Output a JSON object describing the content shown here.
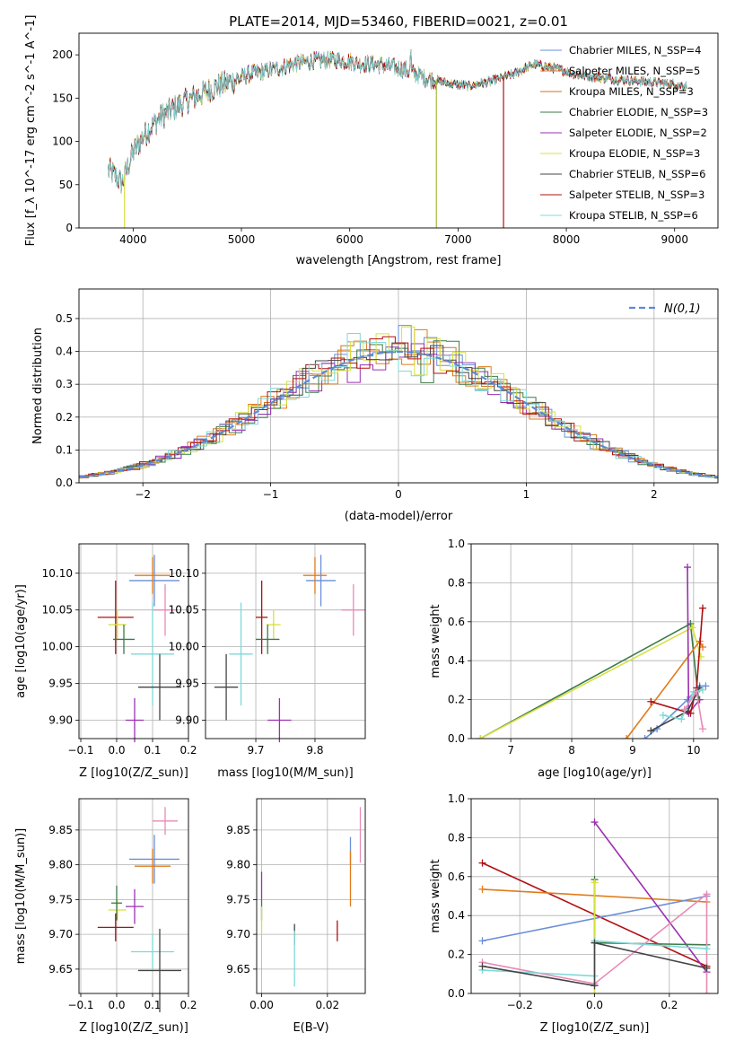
{
  "figure": {
    "title": "PLATE=2014, MJD=53460, FIBERID=0021, z=0.01"
  },
  "legend_spectrum": [
    {
      "label": "Chabrier MILES, N_SSP=4",
      "color": "#6a8fd8"
    },
    {
      "label": "Salpeter MILES, N_SSP=5",
      "color": "#e07b1a"
    },
    {
      "label": "Kroupa MILES, N_SSP=3",
      "color": "#cc7a22"
    },
    {
      "label": "Chabrier ELODIE, N_SSP=3",
      "color": "#3c7a4a"
    },
    {
      "label": "Salpeter ELODIE, N_SSP=2",
      "color": "#9b30b0"
    },
    {
      "label": "Kroupa ELODIE, N_SSP=3",
      "color": "#d8e040"
    },
    {
      "label": "Chabrier STELIB, N_SSP=6",
      "color": "#444444"
    },
    {
      "label": "Salpeter STELIB, N_SSP=3",
      "color": "#b01010"
    },
    {
      "label": "Kroupa STELIB, N_SSP=6",
      "color": "#7fd8d8"
    }
  ],
  "legend_hist": {
    "label": "N(0,1)",
    "color": "#5b8ad6"
  },
  "chart_data": [
    {
      "id": "spectrum",
      "type": "line",
      "xlabel": "wavelength [Angstrom, rest frame]",
      "ylabel": "Flux [f_λ 10^-17 erg cm^-2 s^-1 A^-1]",
      "xlim": [
        3500,
        9400
      ],
      "ylim": [
        0,
        225
      ],
      "xticks": [
        "4000",
        "5000",
        "6000",
        "7000",
        "8000",
        "9000"
      ],
      "yticks": [
        "0",
        "50",
        "100",
        "150",
        "200"
      ],
      "continuum": [
        [
          3770,
          70
        ],
        [
          3900,
          55
        ],
        [
          4000,
          90
        ],
        [
          4100,
          110
        ],
        [
          4200,
          125
        ],
        [
          4300,
          135
        ],
        [
          4500,
          150
        ],
        [
          4700,
          162
        ],
        [
          4900,
          172
        ],
        [
          5100,
          180
        ],
        [
          5300,
          185
        ],
        [
          5500,
          192
        ],
        [
          5700,
          195
        ],
        [
          5900,
          196
        ],
        [
          6100,
          192
        ],
        [
          6300,
          190
        ],
        [
          6500,
          185
        ],
        [
          6700,
          175
        ],
        [
          6900,
          168
        ],
        [
          7100,
          165
        ],
        [
          7300,
          170
        ],
        [
          7500,
          178
        ],
        [
          7700,
          190
        ],
        [
          7900,
          185
        ],
        [
          8100,
          178
        ],
        [
          8300,
          175
        ],
        [
          8500,
          172
        ],
        [
          8700,
          170
        ],
        [
          8900,
          168
        ],
        [
          9100,
          165
        ]
      ],
      "drops": [
        {
          "x": 3920,
          "color": "#d8e040"
        },
        {
          "x": 6800,
          "color": "#a8b840"
        },
        {
          "x": 7420,
          "color": "#b01010"
        }
      ]
    },
    {
      "id": "residual_hist",
      "type": "line",
      "xlabel": "(data-model)/error",
      "ylabel": "Normed distribution",
      "xlim": [
        -2.5,
        2.5
      ],
      "ylim": [
        0,
        0.59
      ],
      "xticks": [
        "−2",
        "−1",
        "0",
        "1",
        "2"
      ],
      "yticks": [
        "0.0",
        "0.1",
        "0.2",
        "0.3",
        "0.4",
        "0.5"
      ],
      "gaussian": {
        "mean": 0,
        "sigma": 1
      }
    },
    {
      "id": "age_vs_Z",
      "type": "scatter",
      "xlabel": "Z [log10(Z/Z_sun)]",
      "ylabel": "age [log10(age/yr)]",
      "xlim": [
        -0.105,
        0.2
      ],
      "ylim": [
        9.875,
        10.14
      ],
      "xticks": [
        "−0.1",
        "0.0",
        "0.1",
        "0.2"
      ],
      "yticks": [
        "9.90",
        "9.95",
        "10.00",
        "10.05",
        "10.10"
      ],
      "points": [
        {
          "x": 0.105,
          "y": 10.09,
          "xe": 0.07,
          "ye": 0.035,
          "color": "#6a8fd8"
        },
        {
          "x": 0.1,
          "y": 10.097,
          "xe": 0.05,
          "ye": 0.025,
          "color": "#e07b1a"
        },
        {
          "x": 0.135,
          "y": 10.05,
          "xe": 0.035,
          "ye": 0.035,
          "color": "#e88ab8"
        },
        {
          "x": -0.003,
          "y": 10.04,
          "xe": 0.05,
          "ye": 0.05,
          "color": "#b01010"
        },
        {
          "x": 0.002,
          "y": 10.03,
          "xe": 0.025,
          "ye": 0.02,
          "color": "#d8e040"
        },
        {
          "x": 0.02,
          "y": 10.01,
          "xe": 0.03,
          "ye": 0.02,
          "color": "#3c7a4a"
        },
        {
          "x": 0.1,
          "y": 9.99,
          "xe": 0.06,
          "ye": 0.07,
          "color": "#7fd8d8"
        },
        {
          "x": 0.12,
          "y": 9.945,
          "xe": 0.06,
          "ye": 0.045,
          "color": "#444444"
        },
        {
          "x": 0.05,
          "y": 9.9,
          "xe": 0.025,
          "ye": 0.03,
          "color": "#9b30b0"
        }
      ]
    },
    {
      "id": "age_vs_mass",
      "type": "scatter",
      "xlabel": "mass [log10(M/M_sun)]",
      "ylabel": "",
      "xlim": [
        9.615,
        9.885
      ],
      "ylim": [
        9.875,
        10.14
      ],
      "xticks": [
        "9.7",
        "9.8"
      ],
      "yticks": [
        "9.90",
        "9.95",
        "10.00",
        "10.05",
        "10.10"
      ],
      "points": [
        {
          "x": 9.81,
          "y": 10.09,
          "xe": 0.025,
          "ye": 0.035,
          "color": "#6a8fd8"
        },
        {
          "x": 9.8,
          "y": 10.097,
          "xe": 0.02,
          "ye": 0.025,
          "color": "#e07b1a"
        },
        {
          "x": 9.865,
          "y": 10.05,
          "xe": 0.02,
          "ye": 0.035,
          "color": "#e88ab8"
        },
        {
          "x": 9.71,
          "y": 10.04,
          "xe": 0.01,
          "ye": 0.05,
          "color": "#b01010"
        },
        {
          "x": 9.73,
          "y": 10.03,
          "xe": 0.012,
          "ye": 0.02,
          "color": "#d8e040"
        },
        {
          "x": 9.72,
          "y": 10.01,
          "xe": 0.02,
          "ye": 0.02,
          "color": "#3c7a4a"
        },
        {
          "x": 9.675,
          "y": 9.99,
          "xe": 0.02,
          "ye": 0.07,
          "color": "#7fd8d8"
        },
        {
          "x": 9.65,
          "y": 9.945,
          "xe": 0.02,
          "ye": 0.045,
          "color": "#444444"
        },
        {
          "x": 9.74,
          "y": 9.9,
          "xe": 0.02,
          "ye": 0.03,
          "color": "#9b30b0"
        }
      ]
    },
    {
      "id": "weight_vs_age",
      "type": "line",
      "xlabel": "age [log10(age/yr)]",
      "ylabel": "mass weight",
      "xlim": [
        6.35,
        10.4
      ],
      "ylim": [
        0,
        1.0
      ],
      "xticks": [
        "7",
        "8",
        "9",
        "10"
      ],
      "yticks": [
        "0.0",
        "0.2",
        "0.4",
        "0.6",
        "0.8",
        "1.0"
      ],
      "series": [
        {
          "color": "#3c7a4a",
          "pts": [
            [
              6.5,
              0
            ],
            [
              9.95,
              0.59
            ],
            [
              10.08,
              0.2
            ]
          ]
        },
        {
          "color": "#d8e040",
          "pts": [
            [
              6.5,
              0
            ],
            [
              9.98,
              0.57
            ],
            [
              10.12,
              0.42
            ]
          ]
        },
        {
          "color": "#e07b1a",
          "pts": [
            [
              8.9,
              0
            ],
            [
              10.1,
              0.5
            ],
            [
              10.15,
              0.47
            ]
          ]
        },
        {
          "color": "#6a8fd8",
          "pts": [
            [
              9.2,
              0
            ],
            [
              9.4,
              0.05
            ],
            [
              9.9,
              0.2
            ],
            [
              10.1,
              0.27
            ],
            [
              10.2,
              0.27
            ]
          ]
        },
        {
          "color": "#9b30b0",
          "pts": [
            [
              9.9,
              0.88
            ],
            [
              9.92,
              0.13
            ],
            [
              10.1,
              0.2
            ]
          ]
        },
        {
          "color": "#b01010",
          "pts": [
            [
              9.3,
              0.19
            ],
            [
              9.95,
              0.13
            ],
            [
              10.05,
              0.26
            ],
            [
              10.15,
              0.67
            ]
          ]
        },
        {
          "color": "#444444",
          "pts": [
            [
              9.3,
              0.04
            ],
            [
              9.9,
              0.14
            ],
            [
              10.1,
              0.26
            ]
          ]
        },
        {
          "color": "#7fd8d8",
          "pts": [
            [
              9.5,
              0.12
            ],
            [
              9.8,
              0.1
            ],
            [
              10.0,
              0.24
            ],
            [
              10.15,
              0.25
            ]
          ]
        },
        {
          "color": "#e88ab8",
          "pts": [
            [
              9.85,
              0.15
            ],
            [
              10.05,
              0.24
            ],
            [
              10.15,
              0.05
            ]
          ]
        }
      ]
    },
    {
      "id": "mass_vs_Z",
      "type": "scatter",
      "xlabel": "Z [log10(Z/Z_sun)]",
      "ylabel": "mass [log10(M/M_sun)]",
      "xlim": [
        -0.105,
        0.2
      ],
      "ylim": [
        9.615,
        9.895
      ],
      "xticks": [
        "−0.1",
        "0.0",
        "0.1",
        "0.2"
      ],
      "yticks": [
        "9.65",
        "9.70",
        "9.75",
        "9.80",
        "9.85"
      ],
      "points": [
        {
          "x": 0.135,
          "y": 9.863,
          "xe": 0.035,
          "ye": 0.02,
          "color": "#e88ab8"
        },
        {
          "x": 0.105,
          "y": 9.808,
          "xe": 0.07,
          "ye": 0.035,
          "color": "#6a8fd8"
        },
        {
          "x": 0.1,
          "y": 9.798,
          "xe": 0.05,
          "ye": 0.025,
          "color": "#e07b1a"
        },
        {
          "x": 0.05,
          "y": 9.74,
          "xe": 0.025,
          "ye": 0.025,
          "color": "#9b30b0"
        },
        {
          "x": 0.002,
          "y": 9.735,
          "xe": 0.025,
          "ye": 0.015,
          "color": "#d8e040"
        },
        {
          "x": 0.0,
          "y": 9.745,
          "xe": 0.015,
          "ye": 0.025,
          "color": "#3c7a4a"
        },
        {
          "x": -0.003,
          "y": 9.71,
          "xe": 0.05,
          "ye": 0.02,
          "color": "#b01010"
        },
        {
          "x": 0.1,
          "y": 9.675,
          "xe": 0.06,
          "ye": 0.025,
          "color": "#7fd8d8"
        },
        {
          "x": 0.12,
          "y": 9.648,
          "xe": 0.06,
          "ye": 0.06,
          "color": "#444444"
        }
      ]
    },
    {
      "id": "mass_vs_EBV",
      "type": "scatter",
      "xlabel": "E(B-V)",
      "ylabel": "",
      "xlim": [
        -0.0015,
        0.0315
      ],
      "ylim": [
        9.615,
        9.895
      ],
      "xticks": [
        "0.00",
        "0.02"
      ],
      "yticks": [
        "9.65",
        "9.70",
        "9.75",
        "9.80",
        "9.85"
      ],
      "points": [
        {
          "x": 0.03,
          "y": 9.843,
          "xe": 0,
          "ye": 0.04,
          "color": "#e88ab8"
        },
        {
          "x": 0.027,
          "y": 9.82,
          "xe": 0,
          "ye": 0.02,
          "color": "#6a8fd8"
        },
        {
          "x": 0.027,
          "y": 9.78,
          "xe": 0,
          "ye": 0.04,
          "color": "#e07b1a"
        },
        {
          "x": 0.0,
          "y": 9.77,
          "xe": 0,
          "ye": 0.02,
          "color": "#9b30b0"
        },
        {
          "x": 0.0,
          "y": 9.735,
          "xe": 0,
          "ye": 0.015,
          "color": "#3c7a4a"
        },
        {
          "x": 0.0,
          "y": 9.72,
          "xe": 0,
          "ye": 0.02,
          "color": "#d8e040"
        },
        {
          "x": 0.023,
          "y": 9.705,
          "xe": 0,
          "ye": 0.015,
          "color": "#b01010"
        },
        {
          "x": 0.01,
          "y": 9.7,
          "xe": 0,
          "ye": 0.015,
          "color": "#444444"
        },
        {
          "x": 0.01,
          "y": 9.665,
          "xe": 0,
          "ye": 0.04,
          "color": "#7fd8d8"
        }
      ]
    },
    {
      "id": "weight_vs_Z",
      "type": "line",
      "xlabel": "Z [log10(Z/Z_sun)]",
      "ylabel": "mass weight",
      "xlim": [
        -0.33,
        0.33
      ],
      "ylim": [
        0,
        1.0
      ],
      "xticks": [
        "−0.2",
        "0.0",
        "0.2"
      ],
      "yticks": [
        "0.0",
        "0.2",
        "0.4",
        "0.6",
        "0.8",
        "1.0"
      ],
      "series": [
        {
          "color": "#b01010",
          "pts": [
            [
              -0.3,
              0.67
            ],
            [
              0.3,
              0.14
            ]
          ]
        },
        {
          "color": "#e07b1a",
          "pts": [
            [
              -0.3,
              0.535
            ],
            [
              0.3,
              0.47
            ]
          ]
        },
        {
          "color": "#6a8fd8",
          "pts": [
            [
              -0.3,
              0.27
            ],
            [
              0.3,
              0.5
            ]
          ]
        },
        {
          "color": "#9b30b0",
          "pts": [
            [
              0.0,
              0.88
            ],
            [
              0.3,
              0.11
            ]
          ]
        },
        {
          "color": "#3c7a4a",
          "pts": [
            [
              0.0,
              0.585
            ],
            [
              0.0,
              0.26
            ],
            [
              0.3,
              0.25
            ]
          ]
        },
        {
          "color": "#d8e040",
          "pts": [
            [
              0.0,
              0.57
            ],
            [
              0.0,
              0.0
            ]
          ]
        },
        {
          "color": "#e88ab8",
          "pts": [
            [
              -0.3,
              0.16
            ],
            [
              0.0,
              0.05
            ],
            [
              0.3,
              0.51
            ],
            [
              0.3,
              0.0
            ]
          ]
        },
        {
          "color": "#7fd8d8",
          "pts": [
            [
              -0.3,
              0.12
            ],
            [
              0.0,
              0.09
            ],
            [
              0.0,
              0.27
            ],
            [
              0.3,
              0.23
            ]
          ]
        },
        {
          "color": "#444444",
          "pts": [
            [
              -0.3,
              0.14
            ],
            [
              0.0,
              0.04
            ],
            [
              0.0,
              0.26
            ],
            [
              0.3,
              0.13
            ]
          ]
        }
      ]
    }
  ]
}
